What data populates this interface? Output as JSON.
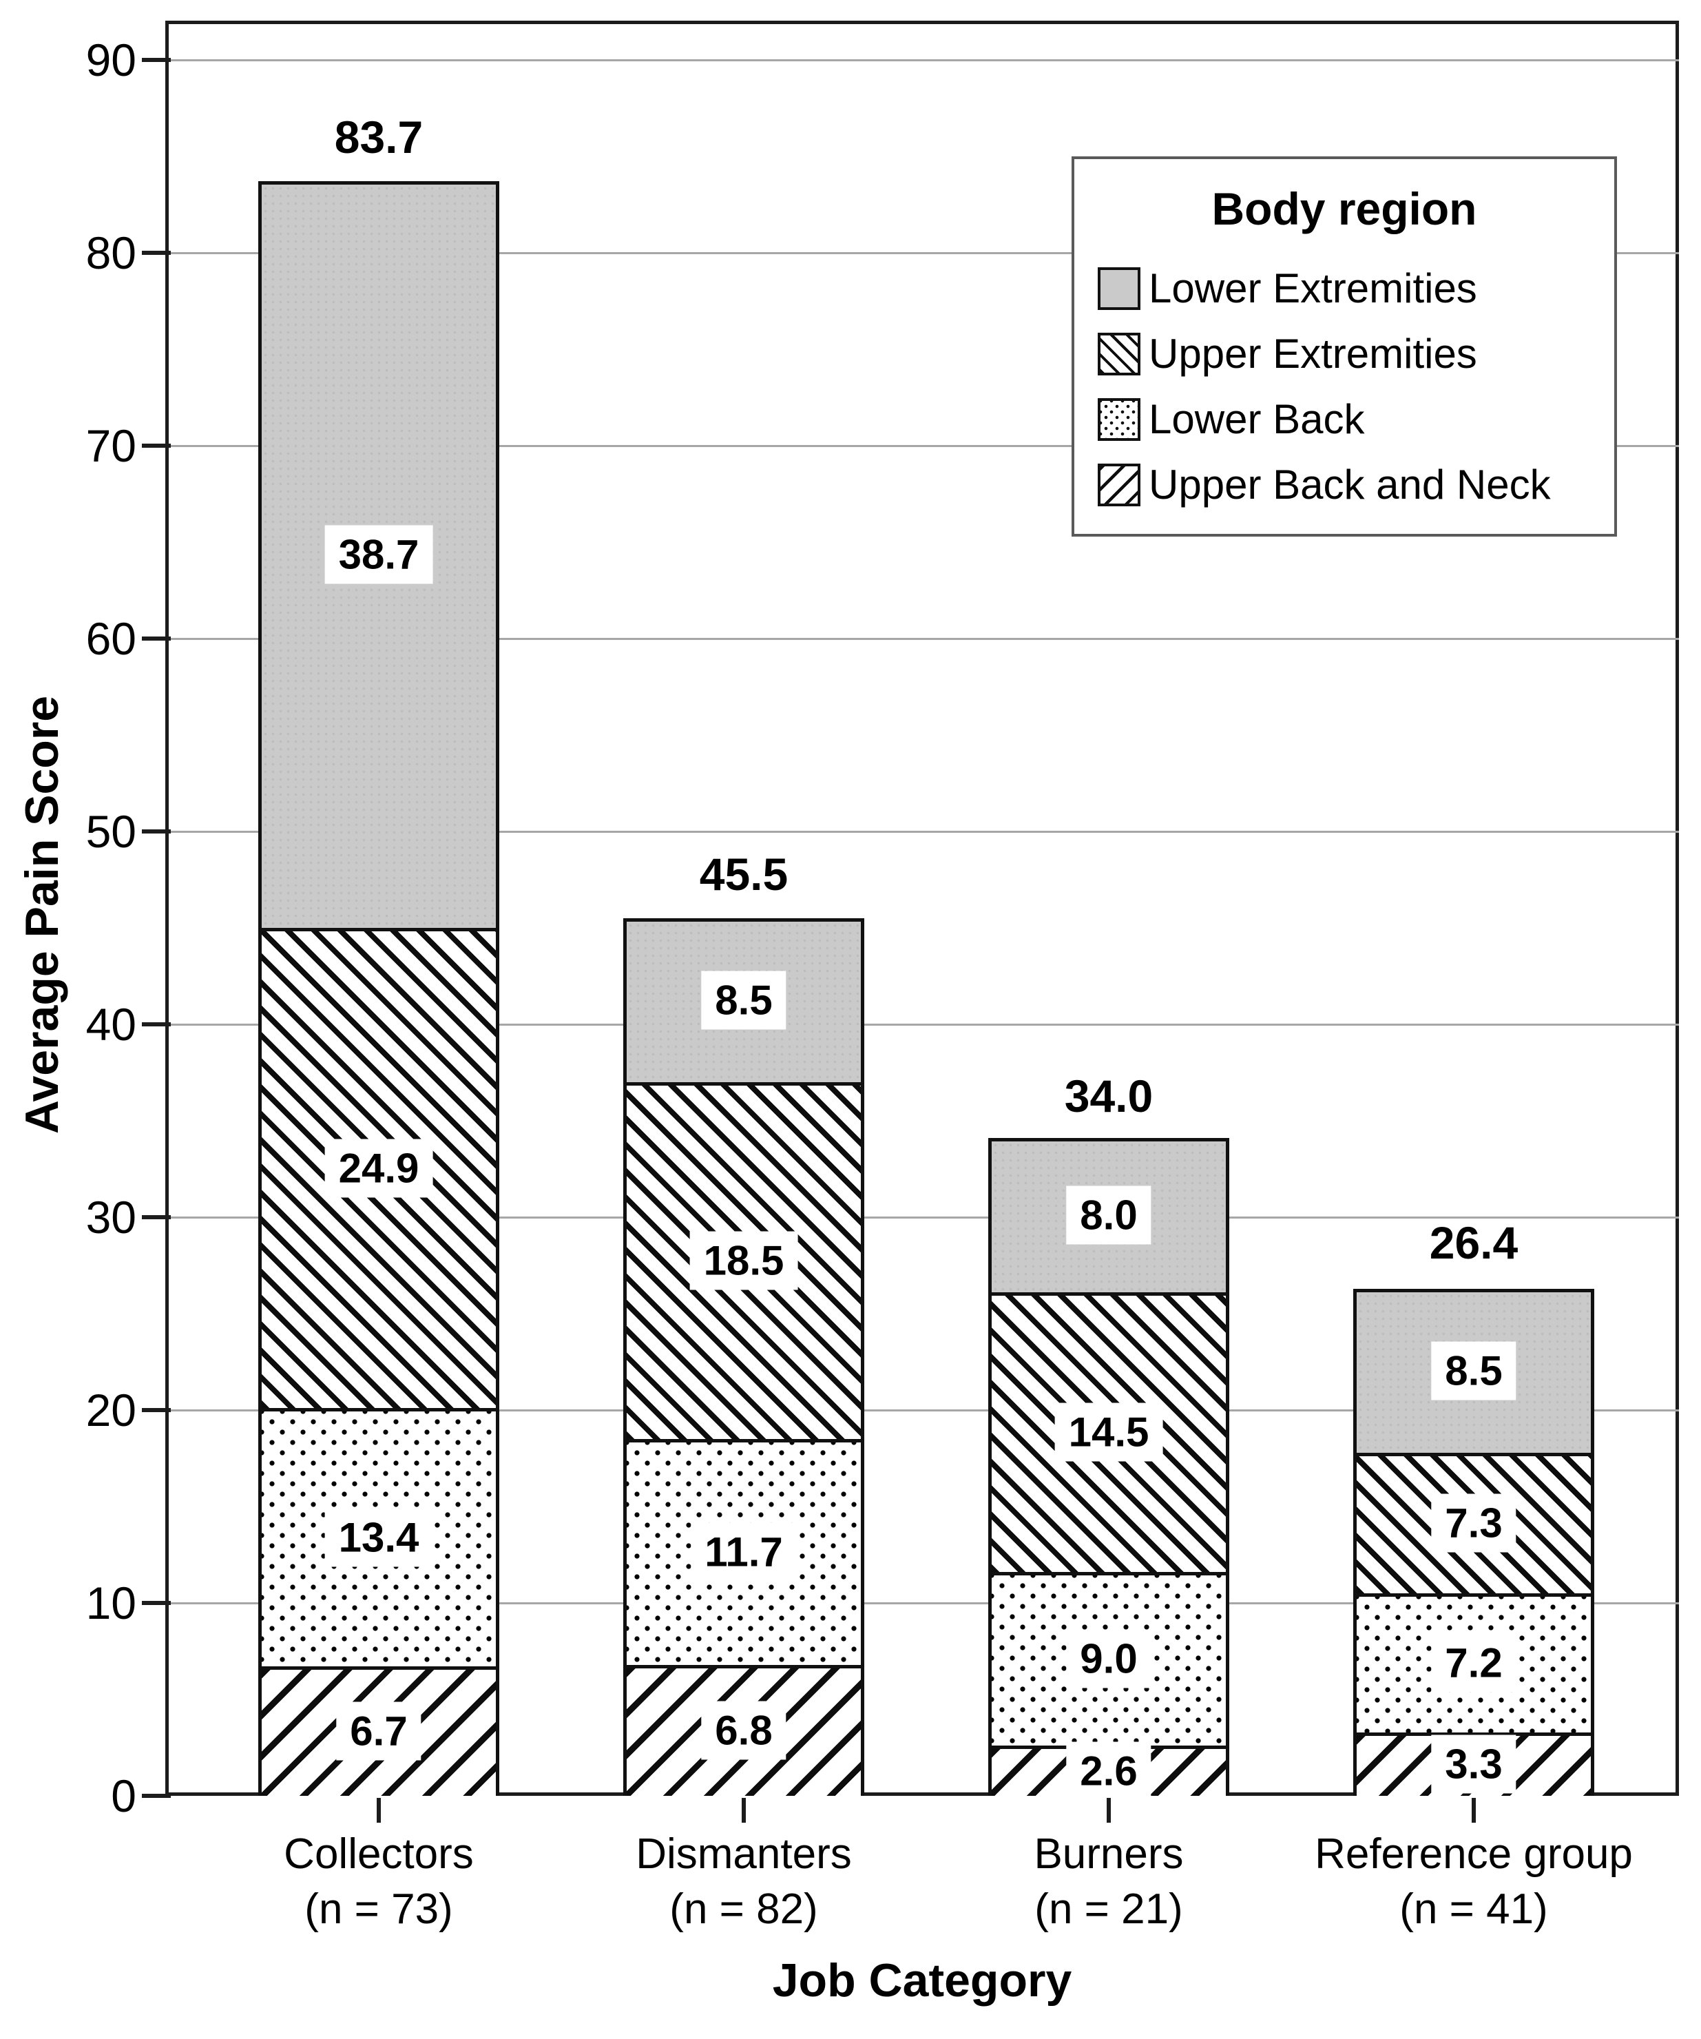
{
  "y_axis": {
    "title": "Average Pain Score",
    "ticks": [
      0,
      10,
      20,
      30,
      40,
      50,
      60,
      70,
      80,
      90
    ],
    "ylim": [
      0,
      90
    ]
  },
  "x_axis": {
    "title": "Job Category"
  },
  "legend": {
    "title": "Body region",
    "entries": [
      {
        "label": "Lower Extremities",
        "pattern": "solid-gray"
      },
      {
        "label": "Upper Extremities",
        "pattern": "hatch-backslash"
      },
      {
        "label": "Lower Back",
        "pattern": "dots"
      },
      {
        "label": "Upper Back and Neck",
        "pattern": "hatch-slash"
      }
    ]
  },
  "colors": {
    "segment_gray": "#cacaca",
    "grid": "#a6a6a6",
    "frame": "#1c1c1c",
    "text": "#000000"
  },
  "chart_data": {
    "type": "bar",
    "stacked": true,
    "title": "",
    "xlabel": "Job Category",
    "ylabel": "Average Pain Score",
    "ylim": [
      0,
      90
    ],
    "grid": true,
    "legend_position": "top-right",
    "categories": [
      {
        "label": "Collectors",
        "n_label": "(n = 73)"
      },
      {
        "label": "Dismanters",
        "n_label": "(n = 82)"
      },
      {
        "label": "Burners",
        "n_label": "(n = 21)"
      },
      {
        "label": "Reference group",
        "n_label": "(n = 41)"
      }
    ],
    "series": [
      {
        "name": "Upper Back and Neck",
        "pattern": "hatch-slash",
        "values": [
          6.7,
          6.8,
          2.6,
          3.3
        ],
        "labels": [
          "6.7",
          "6.8",
          "2.6",
          "3.3"
        ]
      },
      {
        "name": "Lower Back",
        "pattern": "dots",
        "values": [
          13.4,
          11.7,
          9.0,
          7.2
        ],
        "labels": [
          "13.4",
          "11.7",
          "9.0",
          "7.2"
        ]
      },
      {
        "name": "Upper Extremities",
        "pattern": "hatch-backslash",
        "values": [
          24.9,
          18.5,
          14.5,
          7.3
        ],
        "labels": [
          "24.9",
          "18.5",
          "14.5",
          "7.3"
        ]
      },
      {
        "name": "Lower Extremities",
        "pattern": "solid-gray",
        "values": [
          38.7,
          8.5,
          8.0,
          8.5
        ],
        "labels": [
          "38.7",
          "8.5",
          "8.0",
          "8.5"
        ]
      }
    ],
    "totals": [
      83.7,
      45.5,
      34.0,
      26.4
    ],
    "total_labels": [
      "83.7",
      "45.5",
      "34.0",
      "26.4"
    ]
  }
}
